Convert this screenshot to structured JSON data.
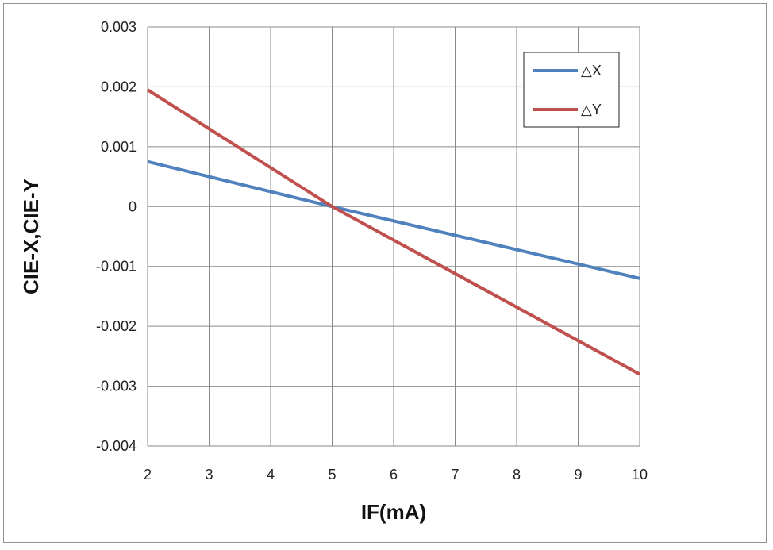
{
  "chart_data": {
    "type": "line",
    "title": "",
    "xlabel": "IF(mA)",
    "ylabel": "CIE-X,CIE-Y",
    "xlim": [
      2,
      10
    ],
    "ylim": [
      -0.004,
      0.003
    ],
    "x_ticks": [
      "2",
      "3",
      "4",
      "5",
      "6",
      "7",
      "8",
      "9",
      "10"
    ],
    "y_ticks": [
      "0.003",
      "0.002",
      "0.001",
      "0",
      "-0.001",
      "-0.002",
      "-0.003",
      "-0.004"
    ],
    "grid": true,
    "legend_position": "top-right",
    "series": [
      {
        "name": "△X",
        "color": "#4f81bd",
        "x": [
          2,
          5,
          10
        ],
        "y": [
          0.00075,
          0.0,
          -0.0012
        ]
      },
      {
        "name": "△Y",
        "color": "#c0504d",
        "x": [
          2,
          5,
          10
        ],
        "y": [
          0.00195,
          0.0,
          -0.0028
        ]
      }
    ]
  }
}
